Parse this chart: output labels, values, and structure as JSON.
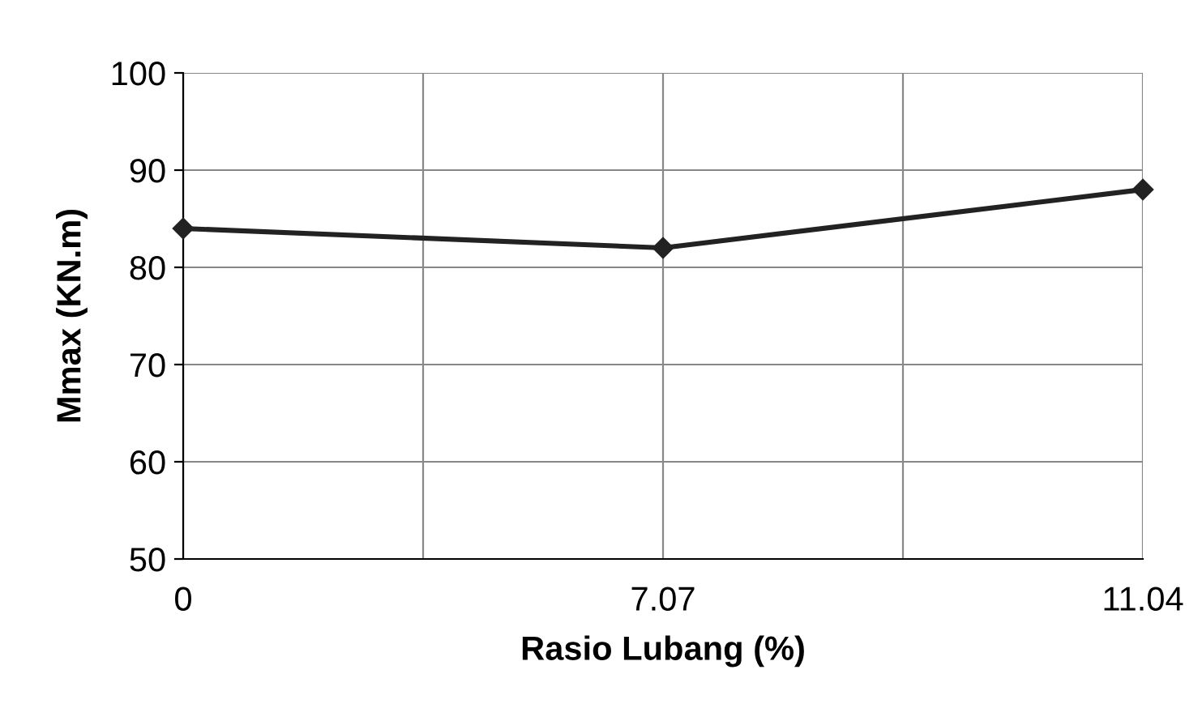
{
  "chart_data": {
    "type": "line",
    "xlabel": "Rasio Lubang (%)",
    "ylabel": "Mmax (KN.m)",
    "categories": [
      "0",
      "7.07",
      "11.04"
    ],
    "series": [
      {
        "color": "#222222",
        "values": [
          84,
          82,
          88
        ]
      }
    ],
    "ylim": [
      50,
      100
    ],
    "yticks": [
      50,
      60,
      70,
      80,
      90,
      100
    ],
    "grid": true,
    "marker": "diamond",
    "line_style": "solid"
  }
}
